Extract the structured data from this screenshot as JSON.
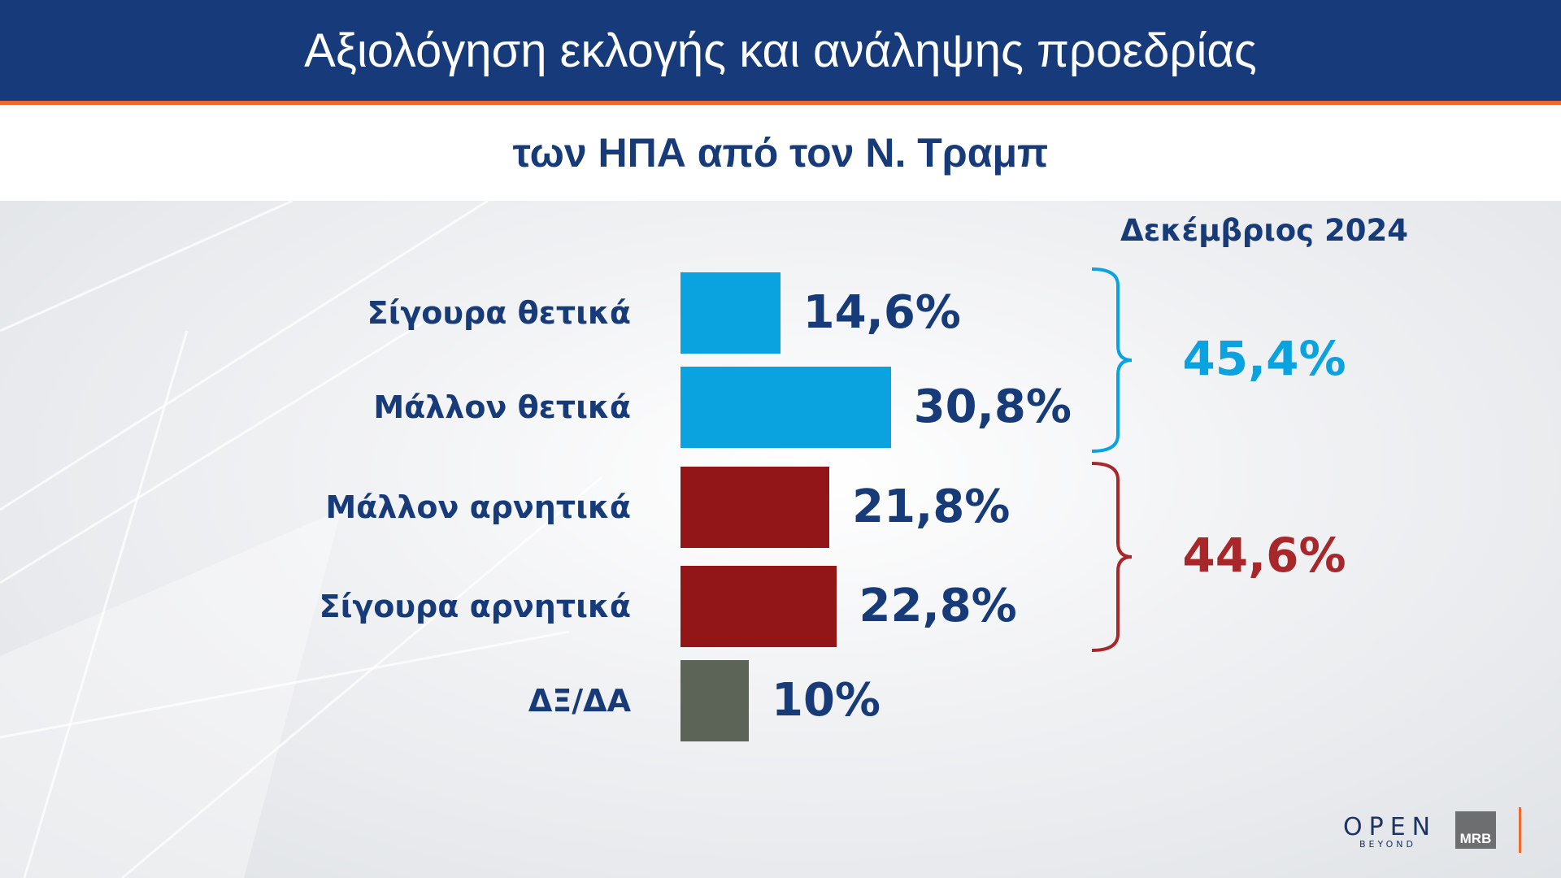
{
  "header": {
    "title": "Αξιολόγηση εκλογής και ανάληψης προεδρίας",
    "subtitle": "των ΗΠΑ από τον Ν. Τραμπ"
  },
  "chart_data": {
    "type": "bar",
    "orientation": "horizontal",
    "title": "Αξιολόγηση εκλογής και ανάληψης προεδρίας των ΗΠΑ από τον Ν. Τραμπ",
    "period": "Δεκέμβριος 2024",
    "categories": [
      "Σίγουρα θετικά",
      "Μάλλον θετικά",
      "Μάλλον αρνητικά",
      "Σίγουρα αρνητικά",
      "ΔΞ/ΔΑ"
    ],
    "values": [
      14.6,
      30.8,
      21.8,
      22.8,
      10
    ],
    "value_labels": [
      "14,6%",
      "30,8%",
      "21,8%",
      "22,8%",
      "10%"
    ],
    "bar_colors": [
      "#0aa3e0",
      "#0aa3e0",
      "#921517",
      "#921517",
      "#5c6457"
    ],
    "groups": [
      {
        "members": [
          0,
          1
        ],
        "total": 45.4,
        "total_label": "45,4%",
        "color": "#0aa3e0"
      },
      {
        "members": [
          2,
          3
        ],
        "total": 44.6,
        "total_label": "44,6%",
        "color": "#a8272b"
      }
    ],
    "grid": false,
    "legend": "none"
  },
  "logos": {
    "open": "OPEN",
    "open_tagline": "BEYOND",
    "mrb": "MRB"
  }
}
